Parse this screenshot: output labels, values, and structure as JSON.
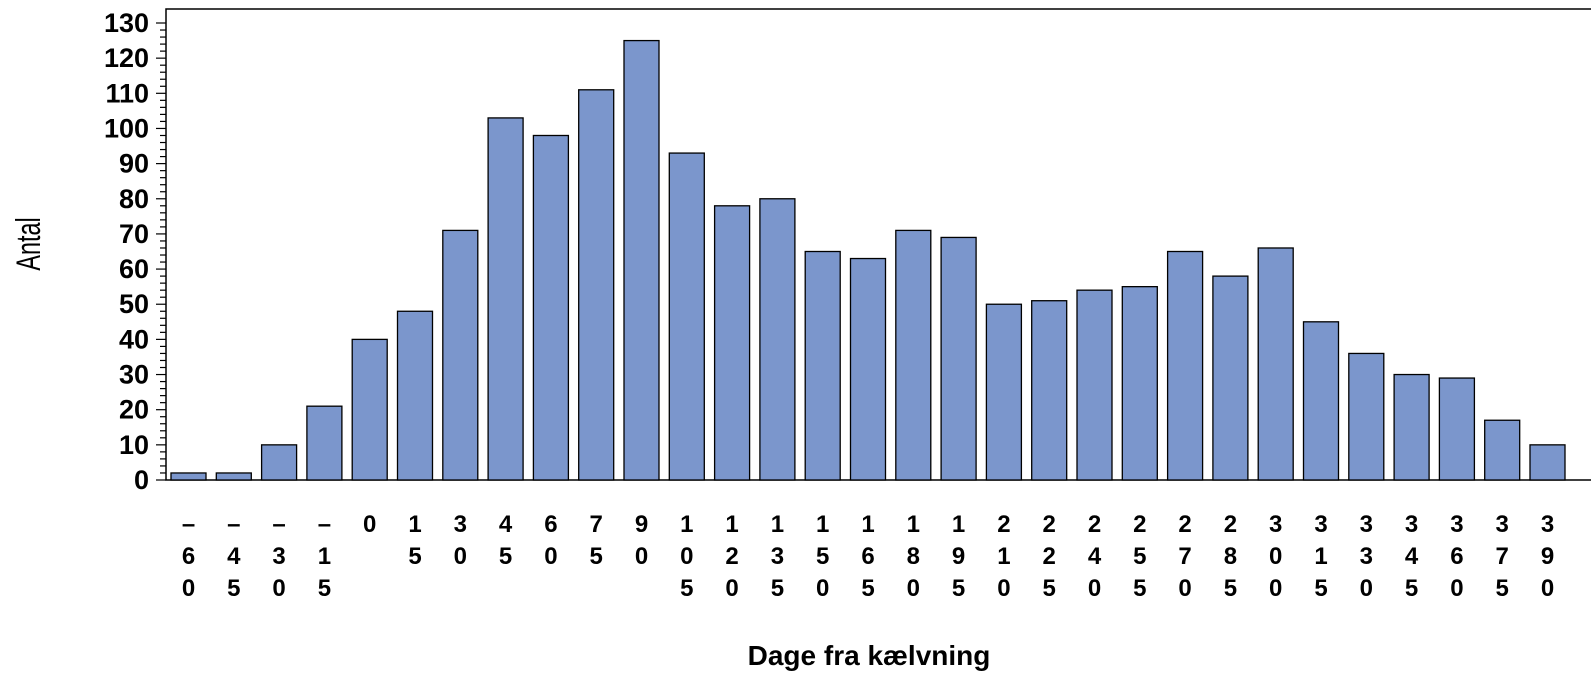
{
  "chart_data": {
    "type": "bar",
    "title": "",
    "xlabel": "Dage fra kælvning",
    "ylabel": "Antal",
    "ylim": [
      0,
      130
    ],
    "yticks": [
      0,
      10,
      20,
      30,
      40,
      50,
      60,
      70,
      80,
      90,
      100,
      110,
      120,
      130
    ],
    "grid": false,
    "legend": "none",
    "categories": [
      "-60",
      "-45",
      "-30",
      "-15",
      "0",
      "15",
      "30",
      "45",
      "60",
      "75",
      "90",
      "105",
      "120",
      "135",
      "150",
      "165",
      "180",
      "195",
      "210",
      "225",
      "240",
      "255",
      "270",
      "285",
      "300",
      "315",
      "330",
      "345",
      "360",
      "375",
      "390"
    ],
    "category_label_lines": [
      [
        "–",
        "6",
        "0"
      ],
      [
        "–",
        "4",
        "5"
      ],
      [
        "–",
        "3",
        "0"
      ],
      [
        "–",
        "1",
        "5"
      ],
      [
        "0"
      ],
      [
        "1",
        "5"
      ],
      [
        "3",
        "0"
      ],
      [
        "4",
        "5"
      ],
      [
        "6",
        "0"
      ],
      [
        "7",
        "5"
      ],
      [
        "9",
        "0"
      ],
      [
        "1",
        "0",
        "5"
      ],
      [
        "1",
        "2",
        "0"
      ],
      [
        "1",
        "3",
        "5"
      ],
      [
        "1",
        "5",
        "0"
      ],
      [
        "1",
        "6",
        "5"
      ],
      [
        "1",
        "8",
        "0"
      ],
      [
        "1",
        "9",
        "5"
      ],
      [
        "2",
        "1",
        "0"
      ],
      [
        "2",
        "2",
        "5"
      ],
      [
        "2",
        "4",
        "0"
      ],
      [
        "2",
        "5",
        "5"
      ],
      [
        "2",
        "7",
        "0"
      ],
      [
        "2",
        "8",
        "5"
      ],
      [
        "3",
        "0",
        "0"
      ],
      [
        "3",
        "1",
        "5"
      ],
      [
        "3",
        "3",
        "0"
      ],
      [
        "3",
        "4",
        "5"
      ],
      [
        "3",
        "6",
        "0"
      ],
      [
        "3",
        "7",
        "5"
      ],
      [
        "3",
        "9",
        "0"
      ]
    ],
    "values": [
      2,
      2,
      10,
      21,
      40,
      48,
      71,
      103,
      98,
      111,
      125,
      93,
      78,
      80,
      65,
      63,
      71,
      69,
      50,
      51,
      54,
      55,
      65,
      58,
      66,
      45,
      36,
      30,
      29,
      17,
      10
    ],
    "bar_color": "#7b96cc",
    "bar_edge_color": "#000000"
  }
}
